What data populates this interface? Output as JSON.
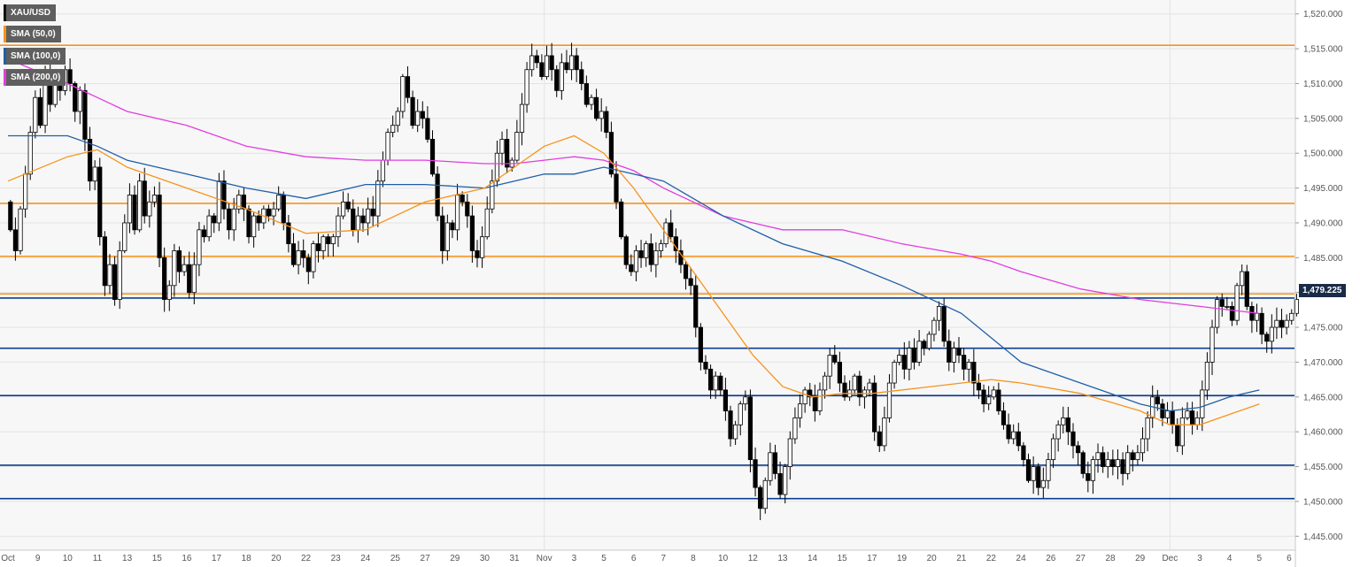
{
  "legend": [
    {
      "label": "XAU/USD",
      "color": "#111111"
    },
    {
      "label": "SMA (50,0)",
      "color": "#f7931e"
    },
    {
      "label": "SMA (100,0)",
      "color": "#1f5fa8"
    },
    {
      "label": "SMA (200,0)",
      "color": "#e13de0"
    }
  ],
  "price_tag": {
    "label": "1,479.225"
  },
  "colors": {
    "background": "#f7f7f7",
    "up_candle": "#ffffff",
    "down_candle": "#000000",
    "resistance": "#f7931e",
    "support": "#0b3d91",
    "sma50": "#f7931e",
    "sma100": "#1f5fa8",
    "sma200": "#e13de0"
  },
  "chart_data": {
    "type": "candlestick",
    "instrument": "XAU/USD",
    "ylim": [
      1443,
      1522
    ],
    "y_ticks": [
      1445,
      1450,
      1455,
      1460,
      1465,
      1470,
      1475,
      1480,
      1485,
      1490,
      1495,
      1500,
      1505,
      1510,
      1515,
      1520
    ],
    "y_tick_labels": [
      "1,445.000",
      "1,450.000",
      "1,455.000",
      "1,460.000",
      "1,465.000",
      "1,470.000",
      "1,475.000",
      "1,480.000",
      "1,485.000",
      "1,490.000",
      "1,495.000",
      "1,500.000",
      "1,505.000",
      "1,510.000",
      "1,515.000",
      "1,520.000"
    ],
    "x_labels": [
      {
        "label": "Oct",
        "session": 0
      },
      {
        "label": "9",
        "session": 1
      },
      {
        "label": "10",
        "session": 2
      },
      {
        "label": "11",
        "session": 3
      },
      {
        "label": "13",
        "session": 4
      },
      {
        "label": "15",
        "session": 5
      },
      {
        "label": "16",
        "session": 6
      },
      {
        "label": "17",
        "session": 7
      },
      {
        "label": "18",
        "session": 8
      },
      {
        "label": "20",
        "session": 9
      },
      {
        "label": "22",
        "session": 10
      },
      {
        "label": "23",
        "session": 11
      },
      {
        "label": "24",
        "session": 12
      },
      {
        "label": "25",
        "session": 13
      },
      {
        "label": "27",
        "session": 14
      },
      {
        "label": "29",
        "session": 15
      },
      {
        "label": "30",
        "session": 16
      },
      {
        "label": "31",
        "session": 17
      },
      {
        "label": "Nov",
        "session": 18
      },
      {
        "label": "3",
        "session": 19
      },
      {
        "label": "5",
        "session": 20
      },
      {
        "label": "6",
        "session": 21
      },
      {
        "label": "7",
        "session": 22
      },
      {
        "label": "8",
        "session": 23
      },
      {
        "label": "10",
        "session": 24
      },
      {
        "label": "12",
        "session": 25
      },
      {
        "label": "13",
        "session": 26
      },
      {
        "label": "14",
        "session": 27
      },
      {
        "label": "15",
        "session": 28
      },
      {
        "label": "17",
        "session": 29
      },
      {
        "label": "19",
        "session": 30
      },
      {
        "label": "20",
        "session": 31
      },
      {
        "label": "21",
        "session": 32
      },
      {
        "label": "22",
        "session": 33
      },
      {
        "label": "24",
        "session": 34
      },
      {
        "label": "26",
        "session": 35
      },
      {
        "label": "27",
        "session": 36
      },
      {
        "label": "28",
        "session": 37
      },
      {
        "label": "29",
        "session": 38
      },
      {
        "label": "Dec",
        "session": 39
      },
      {
        "label": "3",
        "session": 40
      },
      {
        "label": "4",
        "session": 41
      },
      {
        "label": "5",
        "session": 42
      },
      {
        "label": "6",
        "session": 43
      }
    ],
    "horizontal_levels": [
      {
        "value": 1515.5,
        "kind": "resistance"
      },
      {
        "value": 1492.8,
        "kind": "resistance"
      },
      {
        "value": 1485.2,
        "kind": "resistance"
      },
      {
        "value": 1479.8,
        "kind": "resistance"
      },
      {
        "value": 1479.2,
        "kind": "support"
      },
      {
        "value": 1472.0,
        "kind": "support"
      },
      {
        "value": 1465.2,
        "kind": "support"
      },
      {
        "value": 1455.2,
        "kind": "support"
      },
      {
        "value": 1450.4,
        "kind": "support"
      }
    ],
    "sessions": [
      {
        "session": 0,
        "path": [
          1493,
          1489,
          1486,
          1492,
          1497,
          1503,
          1508
        ]
      },
      {
        "session": 1,
        "path": [
          1508,
          1504,
          1512,
          1507,
          1511,
          1509,
          1512
        ]
      },
      {
        "session": 2,
        "path": [
          1512,
          1510,
          1506,
          1509,
          1502,
          1496,
          1498
        ]
      },
      {
        "session": 3,
        "path": [
          1498,
          1488,
          1481,
          1484,
          1479,
          1486,
          1490
        ]
      },
      {
        "session": 4,
        "path": [
          1490,
          1494,
          1489,
          1496,
          1491,
          1493,
          1494
        ]
      },
      {
        "session": 5,
        "path": [
          1494,
          1485,
          1479,
          1481,
          1486,
          1483,
          1484
        ]
      },
      {
        "session": 6,
        "path": [
          1484,
          1480,
          1484,
          1489,
          1488,
          1491,
          1490
        ]
      },
      {
        "session": 7,
        "path": [
          1490,
          1496,
          1492,
          1489,
          1492,
          1494,
          1492
        ]
      },
      {
        "session": 8,
        "path": [
          1492,
          1488,
          1491,
          1490,
          1492,
          1491,
          1492
        ]
      },
      {
        "session": 9,
        "path": [
          1492,
          1494,
          1490,
          1487,
          1484,
          1486,
          1485
        ]
      },
      {
        "session": 10,
        "path": [
          1485,
          1483,
          1487,
          1486,
          1488,
          1487,
          1488
        ]
      },
      {
        "session": 11,
        "path": [
          1488,
          1491,
          1493,
          1492,
          1489,
          1491,
          1490
        ]
      },
      {
        "session": 12,
        "path": [
          1490,
          1492,
          1491,
          1496,
          1499,
          1503,
          1504
        ]
      },
      {
        "session": 13,
        "path": [
          1504,
          1506,
          1511,
          1508,
          1504,
          1506,
          1505
        ]
      },
      {
        "session": 14,
        "path": [
          1505,
          1502,
          1497,
          1491,
          1486,
          1490,
          1489
        ]
      },
      {
        "session": 15,
        "path": [
          1489,
          1494,
          1493,
          1491,
          1486,
          1485,
          1488
        ]
      },
      {
        "session": 16,
        "path": [
          1488,
          1492,
          1496,
          1500,
          1502,
          1498,
          1499
        ]
      },
      {
        "session": 17,
        "path": [
          1499,
          1503,
          1507,
          1512,
          1514,
          1513,
          1511
        ]
      },
      {
        "session": 18,
        "path": [
          1511,
          1514,
          1512,
          1509,
          1513,
          1512,
          1514
        ]
      },
      {
        "session": 19,
        "path": [
          1514,
          1512,
          1510,
          1507,
          1508,
          1505,
          1506
        ]
      },
      {
        "session": 20,
        "path": [
          1506,
          1503,
          1497,
          1493,
          1488,
          1484,
          1483
        ]
      },
      {
        "session": 21,
        "path": [
          1483,
          1486,
          1485,
          1487,
          1484,
          1486,
          1487
        ]
      },
      {
        "session": 22,
        "path": [
          1487,
          1490,
          1488,
          1486,
          1484,
          1482,
          1481
        ]
      },
      {
        "session": 23,
        "path": [
          1481,
          1475,
          1470,
          1469,
          1466,
          1468,
          1466
        ]
      },
      {
        "session": 24,
        "path": [
          1466,
          1463,
          1459,
          1461,
          1464,
          1465,
          1456
        ]
      },
      {
        "session": 25,
        "path": [
          1456,
          1452,
          1449,
          1453,
          1457,
          1454,
          1451
        ]
      },
      {
        "session": 26,
        "path": [
          1451,
          1455,
          1459,
          1462,
          1464,
          1466,
          1465
        ]
      },
      {
        "session": 27,
        "path": [
          1465,
          1463,
          1466,
          1468,
          1471,
          1470,
          1467
        ]
      },
      {
        "session": 28,
        "path": [
          1467,
          1465,
          1466,
          1468,
          1465,
          1466,
          1467
        ]
      },
      {
        "session": 29,
        "path": [
          1467,
          1460,
          1458,
          1462,
          1467,
          1470,
          1471
        ]
      },
      {
        "session": 30,
        "path": [
          1471,
          1469,
          1472,
          1470,
          1473,
          1472,
          1474
        ]
      },
      {
        "session": 31,
        "path": [
          1474,
          1476,
          1478,
          1473,
          1470,
          1472,
          1471
        ]
      },
      {
        "session": 32,
        "path": [
          1471,
          1469,
          1470,
          1467,
          1466,
          1464,
          1465
        ]
      },
      {
        "session": 33,
        "path": [
          1465,
          1466,
          1463,
          1461,
          1459,
          1460,
          1458
        ]
      },
      {
        "session": 34,
        "path": [
          1458,
          1456,
          1453,
          1455,
          1452,
          1453,
          1456
        ]
      },
      {
        "session": 35,
        "path": [
          1456,
          1459,
          1461,
          1462,
          1460,
          1458,
          1457
        ]
      },
      {
        "session": 36,
        "path": [
          1457,
          1454,
          1453,
          1456,
          1457,
          1455,
          1456
        ]
      },
      {
        "session": 37,
        "path": [
          1456,
          1455,
          1456,
          1454,
          1457,
          1456,
          1457
        ]
      },
      {
        "session": 38,
        "path": [
          1457,
          1459,
          1462,
          1465,
          1464,
          1462,
          1463
        ]
      },
      {
        "session": 39,
        "path": [
          1463,
          1461,
          1458,
          1462,
          1463,
          1461,
          1462
        ]
      },
      {
        "session": 40,
        "path": [
          1462,
          1466,
          1470,
          1475,
          1479,
          1478,
          1478
        ]
      },
      {
        "session": 41,
        "path": [
          1478,
          1476,
          1481,
          1483,
          1478,
          1476,
          1477
        ]
      },
      {
        "session": 42,
        "path": [
          1477,
          1474,
          1473,
          1475,
          1476,
          1475,
          1476
        ]
      },
      {
        "session": 43,
        "path": [
          1476,
          1477,
          1479
        ]
      }
    ],
    "sma_50": [
      [
        0,
        1496
      ],
      [
        2,
        1499.5
      ],
      [
        3,
        1500.5
      ],
      [
        4,
        1498
      ],
      [
        6,
        1495
      ],
      [
        8,
        1492
      ],
      [
        10,
        1488.5
      ],
      [
        12,
        1489
      ],
      [
        14,
        1493
      ],
      [
        16,
        1495
      ],
      [
        17,
        1498
      ],
      [
        18,
        1501
      ],
      [
        19,
        1502.5
      ],
      [
        20,
        1500
      ],
      [
        21,
        1495
      ],
      [
        22,
        1489
      ],
      [
        24,
        1477
      ],
      [
        25,
        1471
      ],
      [
        26,
        1466.5
      ],
      [
        27,
        1465
      ],
      [
        28,
        1465.5
      ],
      [
        29,
        1465.5
      ],
      [
        31,
        1466.5
      ],
      [
        33,
        1467.5
      ],
      [
        34,
        1467
      ],
      [
        36,
        1465.5
      ],
      [
        38,
        1463
      ],
      [
        39,
        1461
      ],
      [
        40,
        1461
      ],
      [
        41,
        1462.5
      ],
      [
        42,
        1464
      ]
    ],
    "sma_100": [
      [
        0,
        1502.5
      ],
      [
        2,
        1502.5
      ],
      [
        3,
        1501
      ],
      [
        4,
        1499
      ],
      [
        6,
        1497
      ],
      [
        8,
        1495
      ],
      [
        10,
        1493.5
      ],
      [
        12,
        1495.5
      ],
      [
        14,
        1495.5
      ],
      [
        16,
        1495
      ],
      [
        17,
        1496
      ],
      [
        18,
        1497
      ],
      [
        19,
        1497
      ],
      [
        20,
        1498
      ],
      [
        21,
        1497
      ],
      [
        22,
        1496
      ],
      [
        24,
        1491
      ],
      [
        26,
        1487
      ],
      [
        28,
        1484.5
      ],
      [
        30,
        1481
      ],
      [
        32,
        1477
      ],
      [
        34,
        1470
      ],
      [
        36,
        1467
      ],
      [
        37,
        1465.5
      ],
      [
        38,
        1464
      ],
      [
        39,
        1463
      ],
      [
        40,
        1463.5
      ],
      [
        41,
        1465
      ],
      [
        42,
        1466
      ]
    ],
    "sma_200": [
      [
        0,
        1513.5
      ],
      [
        2,
        1510
      ],
      [
        4,
        1506
      ],
      [
        6,
        1504
      ],
      [
        8,
        1501
      ],
      [
        10,
        1499.5
      ],
      [
        12,
        1499
      ],
      [
        14,
        1499
      ],
      [
        16,
        1498.5
      ],
      [
        17,
        1498.5
      ],
      [
        18,
        1499
      ],
      [
        19,
        1499.5
      ],
      [
        20,
        1499
      ],
      [
        21,
        1497.5
      ],
      [
        22,
        1495
      ],
      [
        24,
        1491
      ],
      [
        26,
        1489
      ],
      [
        28,
        1489
      ],
      [
        30,
        1487
      ],
      [
        32,
        1485.5
      ],
      [
        33,
        1484.5
      ],
      [
        34,
        1483
      ],
      [
        36,
        1480.5
      ],
      [
        38,
        1479
      ],
      [
        39,
        1478.5
      ],
      [
        40,
        1478
      ],
      [
        41,
        1477.5
      ],
      [
        42,
        1477
      ]
    ]
  }
}
